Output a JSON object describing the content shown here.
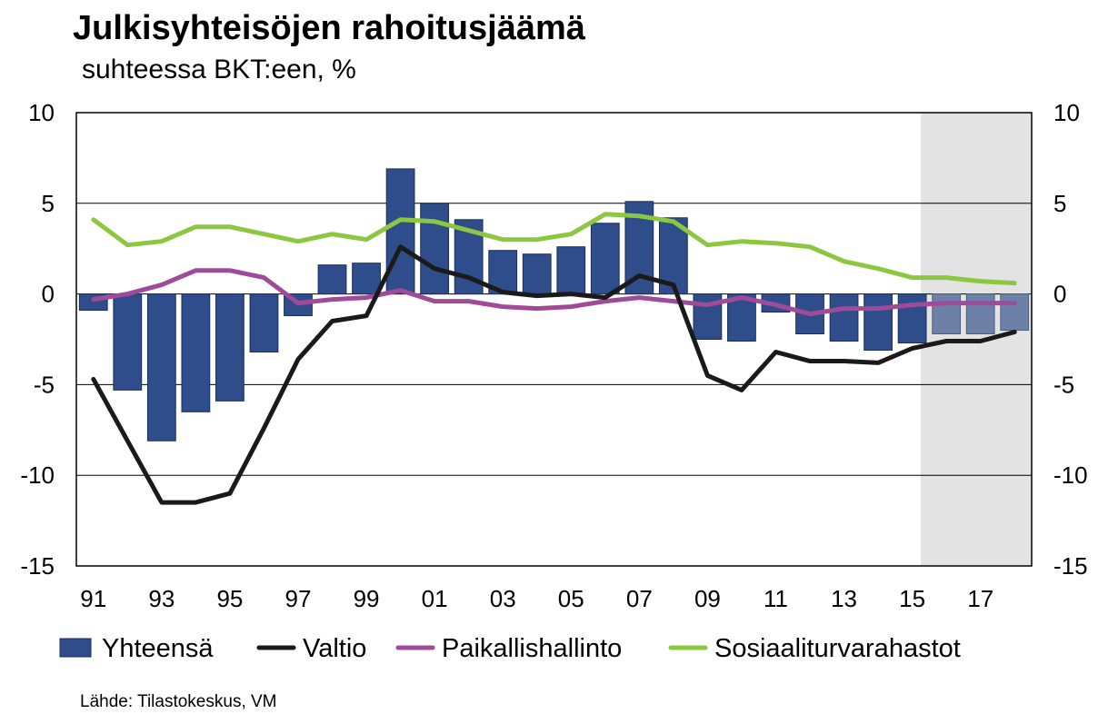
{
  "title": "Julkisyhteisöjen rahoitusjäämä",
  "subtitle": "suhteessa BKT:een, %",
  "source": "Lähde: Tilastokeskus, VM",
  "colors": {
    "bar": "#2e4d8a",
    "bar_forecast": "#6d80a8",
    "valtio": "#1a1a1a",
    "paikallishallinto": "#a04a9a",
    "sosiaaliturva": "#8dc63f",
    "forecast_shade": "#e3e3e3"
  },
  "chart_data": {
    "type": "bar",
    "x": [
      1991,
      1992,
      1993,
      1994,
      1995,
      1996,
      1997,
      1998,
      1999,
      2000,
      2001,
      2002,
      2003,
      2004,
      2005,
      2006,
      2007,
      2008,
      2009,
      2010,
      2011,
      2012,
      2013,
      2014,
      2015,
      2016,
      2017,
      2018
    ],
    "x_tick_labels": [
      "91",
      "93",
      "95",
      "97",
      "99",
      "01",
      "03",
      "05",
      "07",
      "09",
      "11",
      "13",
      "15",
      "17"
    ],
    "y_tick_labels": [
      "10",
      "5",
      "0",
      "-5",
      "-10",
      "-15"
    ],
    "ylim": [
      -15,
      10
    ],
    "forecast_from": 2016,
    "grid": true,
    "legend_placement": "bottom",
    "series": [
      {
        "name": "Yhteensä",
        "kind": "bar",
        "values": [
          -0.9,
          -5.3,
          -8.1,
          -6.5,
          -5.9,
          -3.2,
          -1.2,
          1.6,
          1.7,
          6.9,
          5.0,
          4.1,
          2.4,
          2.2,
          2.6,
          3.9,
          5.1,
          4.2,
          -2.5,
          -2.6,
          -1.0,
          -2.2,
          -2.6,
          -3.1,
          -2.7,
          -2.2,
          -2.2,
          -2.0
        ]
      },
      {
        "name": "Valtio",
        "kind": "line",
        "values": [
          -4.7,
          -8.1,
          -11.5,
          -11.5,
          -11.0,
          -7.4,
          -3.6,
          -1.5,
          -1.2,
          2.6,
          1.4,
          0.9,
          0.1,
          -0.1,
          0.0,
          -0.2,
          1.0,
          0.5,
          -4.5,
          -5.3,
          -3.2,
          -3.7,
          -3.7,
          -3.8,
          -3.0,
          -2.6,
          -2.6,
          -2.1
        ]
      },
      {
        "name": "Paikallishallinto",
        "kind": "line",
        "values": [
          -0.3,
          0.0,
          0.5,
          1.3,
          1.3,
          0.9,
          -0.5,
          -0.3,
          -0.2,
          0.2,
          -0.4,
          -0.4,
          -0.7,
          -0.8,
          -0.7,
          -0.4,
          -0.2,
          -0.4,
          -0.6,
          -0.2,
          -0.6,
          -1.1,
          -0.8,
          -0.8,
          -0.6,
          -0.5,
          -0.5,
          -0.5
        ]
      },
      {
        "name": "Sosiaaliturvarahastot",
        "kind": "line",
        "values": [
          4.1,
          2.7,
          2.9,
          3.7,
          3.7,
          3.3,
          2.9,
          3.3,
          3.0,
          4.1,
          4.0,
          3.5,
          3.0,
          3.0,
          3.3,
          4.4,
          4.3,
          4.0,
          2.7,
          2.9,
          2.8,
          2.6,
          1.8,
          1.4,
          0.9,
          0.9,
          0.7,
          0.6
        ]
      }
    ]
  }
}
